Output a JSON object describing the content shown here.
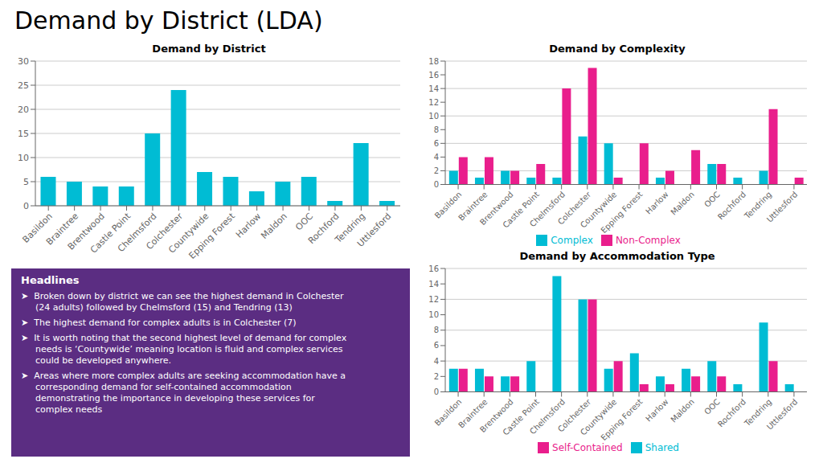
{
  "title": "Demand by District (LDA)",
  "color": "#5B2D82",
  "annotations": [
    "Headlines",
    "➤  Broken down by district we can see the highest demand in Colchester\n(24 adults) followed by Chelmsford (15) and Tendring (13)",
    "➤  The highest demand for complex adults is in Colchester (7)",
    "➤  It is worth noting that the second highest level of demand for complex\nneeds is ‘Countywide’ meaning location is fluid and complex services\ncould be developed anywhere.",
    "➤  Areas where more complex adults are seeking accommodation have a\ncorresponding demand for self-contained accommodation\ndemonstrating the importance in developing these services for\ncomplex needs"
  ],
  "chart_data": [
    {
      "type": "bar",
      "title": "Demand by District",
      "categories": [
        "Basildon",
        "Braintree",
        "Brentwood",
        "Castle Point",
        "Chelmsford",
        "Colchester",
        "Countywide",
        "Epping Forest",
        "Harlow",
        "Maldon",
        "OOC",
        "Rochford",
        "Tendring",
        "Uttlesford"
      ],
      "values": [
        6,
        5,
        4,
        4,
        15,
        24,
        7,
        6,
        3,
        5,
        6,
        1,
        13,
        1
      ],
      "color": "#00BCD4",
      "ylim": [
        0,
        30
      ],
      "yticks": [
        0,
        5,
        10,
        15,
        20,
        25,
        30
      ],
      "grid": true
    },
    {
      "type": "bar",
      "title": "Demand by Complexity",
      "categories": [
        "Basildon",
        "Braintree",
        "Brentwood",
        "Castle Point",
        "Chelmsford",
        "Colchester",
        "Countywide",
        "Epping Forest",
        "Harlow",
        "Maldon",
        "OOC",
        "Rochford",
        "Tendring",
        "Uttlesford"
      ],
      "series": [
        {
          "name": "Complex",
          "color": "#00BCD4",
          "values": [
            2,
            1,
            2,
            1,
            1,
            7,
            6,
            0,
            1,
            0,
            3,
            1,
            2,
            0
          ]
        },
        {
          "name": "Non-Complex",
          "color": "#E91E8C",
          "values": [
            4,
            4,
            2,
            3,
            14,
            17,
            1,
            6,
            2,
            5,
            3,
            0,
            11,
            1
          ]
        }
      ],
      "ylim": [
        0,
        18
      ],
      "yticks": [
        0,
        2,
        4,
        6,
        8,
        10,
        12,
        14,
        16,
        18
      ],
      "grid": true,
      "legend": "bottom"
    },
    {
      "type": "bar",
      "title": "Demand by Accommodation Type",
      "categories": [
        "Basildon",
        "Braintree",
        "Brentwood",
        "Castle Point",
        "Chelmsford",
        "Colchester",
        "Countywide",
        "Epping Forest",
        "Harlow",
        "Maldon",
        "OOC",
        "Rochford",
        "Tendring",
        "Uttlesford"
      ],
      "series": [
        {
          "name": "Shared",
          "color": "#00BCD4",
          "values": [
            3,
            3,
            2,
            4,
            15,
            12,
            3,
            5,
            2,
            3,
            4,
            1,
            9,
            1
          ]
        },
        {
          "name": "Self-Contained",
          "color": "#E91E8C",
          "values": [
            3,
            2,
            2,
            0,
            0,
            12,
            4,
            1,
            1,
            2,
            2,
            0,
            4,
            0
          ]
        }
      ],
      "ylim": [
        0,
        16
      ],
      "yticks": [
        0,
        2,
        4,
        6,
        8,
        10,
        12,
        14,
        16
      ],
      "grid": true,
      "legend": "bottom"
    }
  ]
}
